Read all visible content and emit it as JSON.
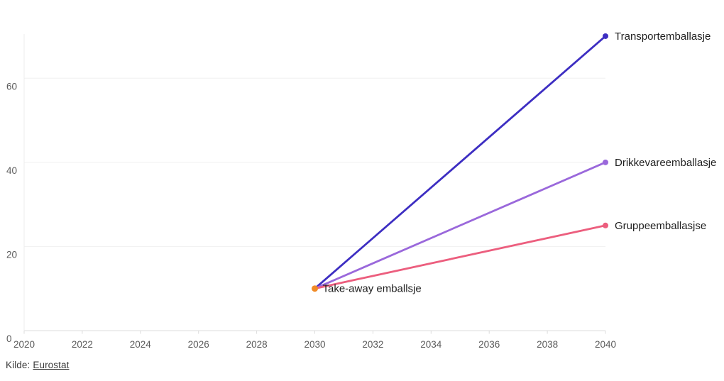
{
  "chart_data": {
    "type": "line",
    "title": "",
    "xlabel": "",
    "ylabel": "",
    "xlim": [
      2020,
      2040
    ],
    "ylim": [
      0,
      70.5
    ],
    "grid": "horizontal",
    "legend_position": "direct-labels-at-line-ends",
    "x_tick_values": [
      2020,
      2022,
      2024,
      2026,
      2028,
      2030,
      2032,
      2034,
      2036,
      2038,
      2040
    ],
    "x_tick_labels": [
      "2020",
      "2022",
      "2024",
      "2026",
      "2028",
      "2030",
      "2032",
      "2034",
      "2036",
      "2038",
      "2040"
    ],
    "y_tick_values": [
      0,
      20,
      40,
      60
    ],
    "y_tick_labels": [
      "0",
      "20",
      "40",
      "60"
    ],
    "series": [
      {
        "name": "Transportemballasje",
        "color": "#3d2ec2",
        "style": "line",
        "x": [
          2030,
          2040
        ],
        "values": [
          10,
          70
        ]
      },
      {
        "name": "Drikkevareemballasje",
        "color": "#9a68db",
        "style": "line",
        "x": [
          2030,
          2040
        ],
        "values": [
          10,
          40
        ]
      },
      {
        "name": "Gruppeemballasjse",
        "color": "#ec5e7e",
        "style": "line",
        "x": [
          2030,
          2040
        ],
        "values": [
          10,
          25
        ]
      },
      {
        "name": "Take-away emballsje",
        "color": "#f08b27",
        "style": "point",
        "x": [
          2030
        ],
        "values": [
          10
        ]
      }
    ]
  },
  "footer": {
    "source_label": "Kilde:",
    "source_link_text": "Eurostat"
  },
  "colors": {
    "background": "#ffffff",
    "gridline": "#f0f0f0",
    "axis_line": "#dcdcdc",
    "left_gridline": "#ededed",
    "tick_text": "#5a5a5a",
    "series_label_text": "#1f1f1f",
    "footer_text": "#3a3a3a"
  }
}
